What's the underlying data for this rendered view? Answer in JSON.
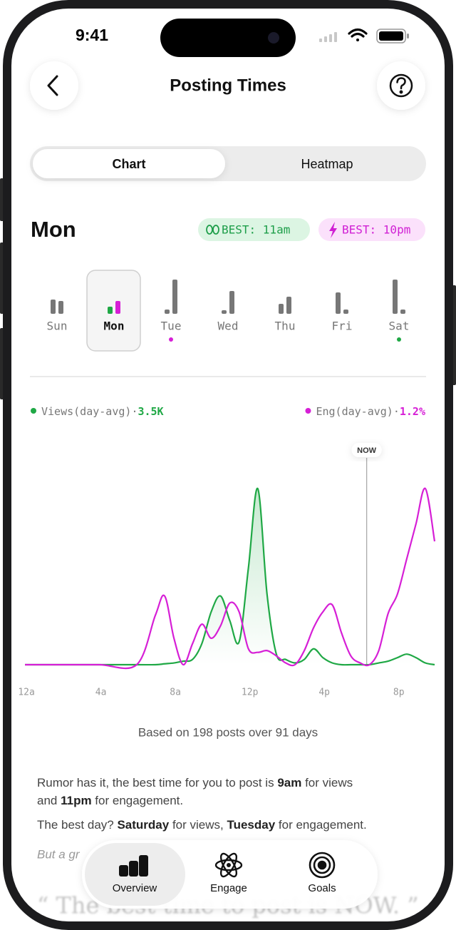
{
  "status_bar": {
    "time": "9:41"
  },
  "header": {
    "title": "Posting Times"
  },
  "tabs": {
    "items": [
      "Chart",
      "Heatmap"
    ],
    "selected": 0
  },
  "day_header": {
    "day": "Mon",
    "badges": [
      {
        "text": "BEST: 11am",
        "color": "#1e9e4a",
        "background": "#dcf5e3"
      },
      {
        "text": "BEST: 10pm",
        "color": "#d020d4",
        "background": "#fbe1fb"
      }
    ]
  },
  "days": {
    "selected": 1,
    "items": [
      {
        "label": "Sun",
        "views": 20,
        "eng": 18,
        "dot": null
      },
      {
        "label": "Mon",
        "views": 10,
        "eng": 18,
        "dot": null
      },
      {
        "label": "Tue",
        "views": 6,
        "eng": 48,
        "dot": "#d61fd6"
      },
      {
        "label": "Wed",
        "views": 5,
        "eng": 32,
        "dot": null
      },
      {
        "label": "Thu",
        "views": 14,
        "eng": 24,
        "dot": null
      },
      {
        "label": "Fri",
        "views": 30,
        "eng": 6,
        "dot": null
      },
      {
        "label": "Sat",
        "views": 48,
        "eng": 6,
        "dot": "#1fa845"
      }
    ]
  },
  "chart_data": {
    "type": "line",
    "x": [
      0,
      2,
      4,
      6,
      7,
      7.5,
      8,
      8.5,
      9,
      9.5,
      10,
      10.5,
      11,
      11.5,
      12,
      12.5,
      13,
      13.5,
      14,
      14.5,
      15,
      15.5,
      16,
      16.5,
      17,
      17.5,
      18,
      18.5,
      19,
      19.5,
      20,
      20.5,
      21,
      21.5,
      22
    ],
    "xlim": [
      -0.5,
      22
    ],
    "ylim": [
      0,
      100
    ],
    "xticks": [
      {
        "value": 0,
        "label": "12a"
      },
      {
        "value": 4,
        "label": "4a"
      },
      {
        "value": 8,
        "label": "8a"
      },
      {
        "value": 12,
        "label": "12p"
      },
      {
        "value": 16,
        "label": "4p"
      },
      {
        "value": 20,
        "label": "8p"
      }
    ],
    "separator": "·",
    "series": [
      {
        "name": "Views(day-avg)",
        "color": "#1fa845",
        "summary": "3.5K",
        "values": [
          0,
          0,
          0,
          0,
          0,
          0.5,
          1,
          2,
          3,
          12,
          30,
          39,
          25,
          13,
          55,
          100,
          40,
          6,
          3,
          1,
          3,
          9,
          4,
          1,
          0,
          0,
          0,
          0,
          1,
          2,
          4,
          6,
          4,
          1,
          0
        ]
      },
      {
        "name": "Eng(day-avg)",
        "color": "#d61fd6",
        "summary": "1.2%",
        "values": [
          0,
          0,
          0,
          0,
          28,
          39,
          15,
          0,
          12,
          23,
          15,
          22,
          35,
          30,
          9,
          7,
          8,
          5,
          1,
          0,
          8,
          21,
          30,
          34,
          18,
          5,
          1,
          0,
          8,
          29,
          40,
          60,
          80,
          100,
          70
        ]
      }
    ],
    "now": {
      "label": "NOW",
      "x": 18.35
    }
  },
  "footnote": "Based on 198 posts over 91 days",
  "paragraphs": [
    {
      "lines": [
        [
          {
            "text": "Rumor has it, the best time for you to post is ",
            "bold": false
          },
          {
            "text": "9am",
            "bold": true
          },
          {
            "text": " for views",
            "bold": false
          }
        ],
        [
          {
            "text": "and ",
            "bold": false
          },
          {
            "text": "11pm",
            "bold": true
          },
          {
            "text": " for engagement.",
            "bold": false
          }
        ]
      ]
    },
    {
      "lines": [
        [
          {
            "text": "The best day? ",
            "bold": false
          },
          {
            "text": "Saturday",
            "bold": true
          },
          {
            "text": " for views, ",
            "bold": false
          },
          {
            "text": "Tuesday",
            "bold": true
          },
          {
            "text": " for engagement.",
            "bold": false
          }
        ]
      ]
    }
  ],
  "aside": "But a gr",
  "quote": "“ The best time to post is NOW. ”",
  "tab_bar": {
    "items": [
      "Overview",
      "Engage",
      "Goals"
    ],
    "selected": 0
  }
}
